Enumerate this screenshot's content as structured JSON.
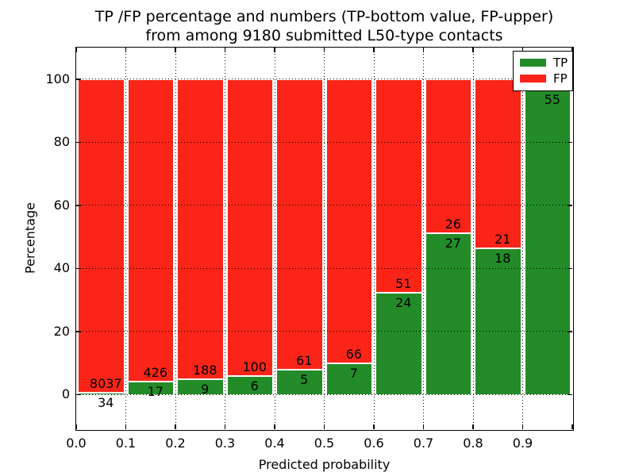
{
  "figure": {
    "title_line1": "TP /FP percentage and numbers (TP-bottom value, FP-upper)",
    "title_line2": "from among 9180 submitted L50-type contacts",
    "xlabel": "Predicted probability",
    "ylabel": "Percentage",
    "background": "#ffffff"
  },
  "legend": {
    "position": "upper right",
    "entries": [
      {
        "label": "TP",
        "color": "#238c28"
      },
      {
        "label": "FP",
        "color": "#fa2518"
      }
    ]
  },
  "chart_data": {
    "type": "bar",
    "stacked": true,
    "title": "TP /FP percentage and numbers (TP-bottom value, FP-upper) from among 9180 submitted L50-type contacts",
    "xlabel": "Predicted probability",
    "ylabel": "Percentage",
    "total_submitted": 9180,
    "contact_type": "L50",
    "bin_edges": [
      0.0,
      0.1,
      0.2,
      0.3,
      0.4,
      0.5,
      0.6,
      0.7,
      0.8,
      0.9,
      1.0
    ],
    "categories": [
      "0.0-0.1",
      "0.1-0.2",
      "0.2-0.3",
      "0.3-0.4",
      "0.4-0.5",
      "0.5-0.6",
      "0.6-0.7",
      "0.7-0.8",
      "0.8-0.9",
      "0.9-1.0"
    ],
    "series": [
      {
        "name": "TP",
        "color": "#238c28",
        "counts": [
          34,
          17,
          9,
          6,
          5,
          7,
          24,
          27,
          18,
          55
        ],
        "labels": [
          "34",
          "17",
          "9",
          "6",
          "5",
          "7",
          "24",
          "27",
          "18",
          "55"
        ]
      },
      {
        "name": "FP",
        "color": "#fa2518",
        "counts": [
          8037,
          426,
          188,
          100,
          61,
          66,
          51,
          26,
          21,
          null
        ],
        "labels": [
          "8037",
          "426",
          "188",
          "100",
          "61",
          "66",
          "51",
          "26",
          "21",
          ""
        ]
      }
    ],
    "tp_percent": [
      0.42,
      3.84,
      4.57,
      5.66,
      7.58,
      9.59,
      32.0,
      50.94,
      46.15,
      96.5
    ],
    "x_tick_labels": [
      "0.0",
      "0.1",
      "0.2",
      "0.3",
      "0.4",
      "0.5",
      "0.6",
      "0.7",
      "0.8",
      "0.9"
    ],
    "y_ticks": [
      {
        "label": "0",
        "value": 0
      },
      {
        "label": "20",
        "value": 20
      },
      {
        "label": "40",
        "value": 40
      },
      {
        "label": "60",
        "value": 60
      },
      {
        "label": "80",
        "value": 80
      },
      {
        "label": "100",
        "value": 100
      }
    ],
    "xlim": [
      0,
      1
    ],
    "ylim": [
      -11,
      110
    ],
    "grid": {
      "style": "dotted",
      "color": "#000000",
      "x_step": 0.1,
      "y_step": 20
    },
    "legend_position": "upper right"
  }
}
